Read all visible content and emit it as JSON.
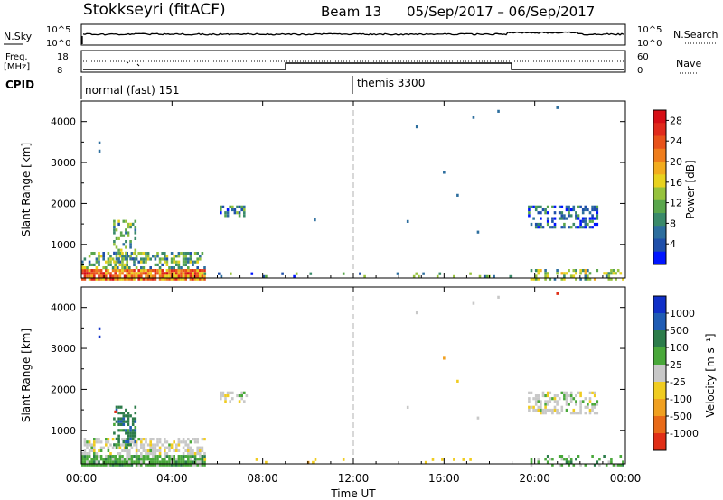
{
  "header": {
    "title": "Stokkseyri (fitACF)",
    "beam_label": "Beam 13",
    "date_range": "05/Sep/2017 – 06/Sep/2017"
  },
  "top_panels": {
    "nsky_label": "N.Sky",
    "nsky_ticks": [
      "10^5",
      "10^0"
    ],
    "nsearch_label": "N.Search",
    "freq_label": "Freq.",
    "freq_unit": "[MHz]",
    "freq_ticks": [
      "18",
      "8"
    ],
    "nave_ticks": [
      "60",
      "0"
    ],
    "nave_label": "Nave",
    "cpid_label": "CPID",
    "cpid_segments": [
      {
        "start_hour": 0,
        "label": "normal (fast) 151"
      },
      {
        "start_hour": 12,
        "label": "themis 3300"
      }
    ]
  },
  "chart_data": [
    {
      "type": "heatmap",
      "name": "power",
      "ylabel": "Slant Range [km]",
      "ylim": [
        180,
        4500
      ],
      "yticks": [
        1000,
        2000,
        3000,
        4000
      ],
      "xlim": [
        0,
        24
      ],
      "xticks": [
        "00:00",
        "04:00",
        "08:00",
        "12:00",
        "16:00",
        "20:00",
        "00:00"
      ],
      "colorbar": {
        "label": "Power [dB]",
        "ticks": [
          "4",
          "8",
          "12",
          "16",
          "20",
          "24",
          "28"
        ],
        "range": [
          0,
          30
        ],
        "colors": [
          "#0015ff",
          "#1f4faa",
          "#2d6e9e",
          "#3a8a6a",
          "#5aa64c",
          "#96c23c",
          "#e8d21e",
          "#f2ac1e",
          "#ef7d1c",
          "#e8521a",
          "#e02a1c",
          "#d60e16"
        ]
      },
      "scatter_regions": [
        {
          "t": [
            0.0,
            5.4
          ],
          "r": [
            180,
            400
          ],
          "level": 22,
          "density": 0.9
        },
        {
          "t": [
            0.0,
            5.4
          ],
          "r": [
            400,
            820
          ],
          "level": 10,
          "density": 0.55
        },
        {
          "t": [
            1.4,
            2.4
          ],
          "r": [
            600,
            1600
          ],
          "level": 9,
          "density": 0.45
        },
        {
          "t": [
            6.1,
            7.3
          ],
          "r": [
            1700,
            1950
          ],
          "level": 7,
          "density": 0.5
        },
        {
          "t": [
            19.7,
            22.8
          ],
          "r": [
            1450,
            1950
          ],
          "level": 5,
          "density": 0.5
        },
        {
          "t": [
            19.8,
            23.9
          ],
          "r": [
            180,
            400
          ],
          "level": 12,
          "density": 0.35
        },
        {
          "t": [
            5.4,
            19.0
          ],
          "r": [
            180,
            320
          ],
          "level": 8,
          "density": 0.12
        }
      ],
      "isolated_points": [
        {
          "t": 0.8,
          "r": 3480,
          "level": 6
        },
        {
          "t": 0.8,
          "r": 3280,
          "level": 6
        },
        {
          "t": 14.8,
          "r": 3870,
          "level": 6
        },
        {
          "t": 17.3,
          "r": 4100,
          "level": 6
        },
        {
          "t": 18.4,
          "r": 4250,
          "level": 6
        },
        {
          "t": 21.0,
          "r": 4340,
          "level": 6
        },
        {
          "t": 16.0,
          "r": 2760,
          "level": 6
        },
        {
          "t": 16.6,
          "r": 2200,
          "level": 6
        },
        {
          "t": 14.4,
          "r": 1560,
          "level": 6
        },
        {
          "t": 10.3,
          "r": 1600,
          "level": 6
        },
        {
          "t": 17.5,
          "r": 1300,
          "level": 6
        }
      ]
    },
    {
      "type": "heatmap",
      "name": "velocity",
      "ylabel": "Slant Range [km]",
      "ylim": [
        180,
        4500
      ],
      "yticks": [
        1000,
        2000,
        3000,
        4000
      ],
      "xlim": [
        0,
        24
      ],
      "xlabel": "Time UT",
      "xticks": [
        "00:00",
        "04:00",
        "08:00",
        "12:00",
        "16:00",
        "20:00",
        "00:00"
      ],
      "colorbar": {
        "label": "Velocity [m s⁻¹]",
        "ticks": [
          "1000",
          "500",
          "100",
          "25",
          "-25",
          "-100",
          "-500",
          "-1000"
        ],
        "colors": [
          "#1030c8",
          "#1f5cb4",
          "#2c7c4a",
          "#49a83a",
          "#c8c8c8",
          "#f0cc20",
          "#f0a020",
          "#e86a18",
          "#e02e16"
        ]
      },
      "scatter_regions": [
        {
          "t": [
            0.0,
            5.4
          ],
          "r": [
            180,
            400
          ],
          "category": 3,
          "density": 0.85
        },
        {
          "t": [
            0.0,
            5.4
          ],
          "r": [
            400,
            820
          ],
          "category": 4,
          "density": 0.55
        },
        {
          "t": [
            1.4,
            2.4
          ],
          "r": [
            600,
            1600
          ],
          "category": 2,
          "density": 0.45
        },
        {
          "t": [
            6.1,
            7.3
          ],
          "r": [
            1700,
            1950
          ],
          "category": 4,
          "density": 0.5
        },
        {
          "t": [
            19.7,
            22.8
          ],
          "r": [
            1450,
            1950
          ],
          "category": 4,
          "density": 0.5
        },
        {
          "t": [
            19.8,
            23.9
          ],
          "r": [
            180,
            400
          ],
          "category": 3,
          "density": 0.3
        },
        {
          "t": [
            5.4,
            19.0
          ],
          "r": [
            180,
            320
          ],
          "category": 5,
          "density": 0.1
        }
      ],
      "isolated_points": [
        {
          "t": 0.8,
          "r": 3480,
          "category": 0
        },
        {
          "t": 0.8,
          "r": 3280,
          "category": 0
        },
        {
          "t": 1.5,
          "r": 1450,
          "category": 8
        },
        {
          "t": 14.8,
          "r": 3870,
          "category": 4
        },
        {
          "t": 17.3,
          "r": 4100,
          "category": 4
        },
        {
          "t": 18.4,
          "r": 4250,
          "category": 4
        },
        {
          "t": 21.0,
          "r": 4340,
          "category": 8
        },
        {
          "t": 16.0,
          "r": 2760,
          "category": 6
        },
        {
          "t": 16.6,
          "r": 2200,
          "category": 5
        },
        {
          "t": 14.4,
          "r": 1560,
          "category": 4
        },
        {
          "t": 17.5,
          "r": 1300,
          "category": 4
        }
      ]
    }
  ]
}
